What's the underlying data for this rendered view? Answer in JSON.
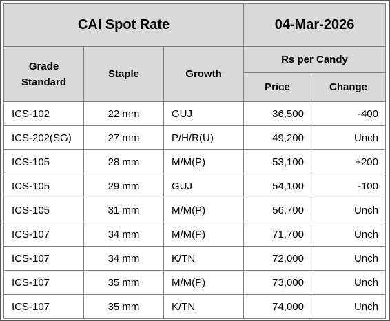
{
  "title": "CAI Spot Rate",
  "date": "04-Mar-2026",
  "headers": {
    "grade": "Grade Standard",
    "staple": "Staple",
    "growth": "Growth",
    "rs_per_candy": "Rs per Candy",
    "price": "Price",
    "change": "Change"
  },
  "rows": [
    {
      "grade": "ICS-102",
      "staple": "22 mm",
      "growth": "GUJ",
      "price": "36,500",
      "change": "-400"
    },
    {
      "grade": "ICS-202(SG)",
      "staple": "27 mm",
      "growth": "P/H/R(U)",
      "price": "49,200",
      "change": "Unch"
    },
    {
      "grade": "ICS-105",
      "staple": "28 mm",
      "growth": "M/M(P)",
      "price": "53,100",
      "change": "+200"
    },
    {
      "grade": "ICS-105",
      "staple": "29 mm",
      "growth": "GUJ",
      "price": "54,100",
      "change": "-100"
    },
    {
      "grade": "ICS-105",
      "staple": "31 mm",
      "growth": "M/M(P)",
      "price": "56,700",
      "change": "Unch"
    },
    {
      "grade": "ICS-107",
      "staple": "34 mm",
      "growth": "M/M(P)",
      "price": "71,700",
      "change": "Unch"
    },
    {
      "grade": "ICS-107",
      "staple": "34 mm",
      "growth": "K/TN",
      "price": "72,000",
      "change": "Unch"
    },
    {
      "grade": "ICS-107",
      "staple": "35 mm",
      "growth": "M/M(P)",
      "price": "73,000",
      "change": "Unch"
    },
    {
      "grade": "ICS-107",
      "staple": "35 mm",
      "growth": "K/TN",
      "price": "74,000",
      "change": "Unch"
    }
  ]
}
